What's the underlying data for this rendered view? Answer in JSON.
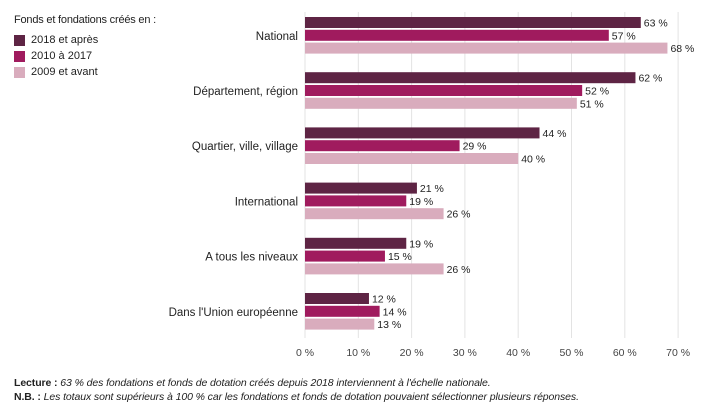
{
  "legend": {
    "title": "Fonds et fondations créés en :",
    "items": [
      {
        "label": "2018 et après",
        "color": "#5e2444"
      },
      {
        "label": "2010 à 2017",
        "color": "#a01b5e"
      },
      {
        "label": "2009 et avant",
        "color": "#d9acbd"
      }
    ]
  },
  "notes": {
    "lecture_label": "Lecture :",
    "lecture_text": "63 % des fondations et fonds de dotation créés depuis 2018 interviennent à l'échelle nationale.",
    "nb_label": "N.B. :",
    "nb_text": "Les totaux sont supérieurs à 100 % car les fondations et fonds de dotation pouvaient sélectionner plusieurs réponses."
  },
  "chart_data": {
    "type": "bar",
    "orientation": "horizontal",
    "categories": [
      "National",
      "Département, région",
      "Quartier, ville, village",
      "International",
      "A tous les niveaux",
      "Dans l'Union européenne"
    ],
    "series": [
      {
        "name": "2018 et après",
        "color": "#5e2444",
        "values": [
          63,
          62,
          44,
          21,
          19,
          12
        ],
        "labels": [
          "63 %",
          "62 %",
          "44 %",
          "21 %",
          "19 %",
          "12 %"
        ]
      },
      {
        "name": "2010 à 2017",
        "color": "#a01b5e",
        "values": [
          57,
          52,
          29,
          19,
          15,
          14
        ],
        "labels": [
          "57 %",
          "52 %",
          "29 %",
          "19 %",
          "15 %",
          "14 %"
        ]
      },
      {
        "name": "2009 et avant",
        "color": "#d9acbd",
        "values": [
          68,
          51,
          40,
          26,
          26,
          13
        ],
        "labels": [
          "68 %",
          "51 %",
          "40 %",
          "26 %",
          "26 %",
          "13 %"
        ]
      }
    ],
    "xlim": [
      0,
      70
    ],
    "xticks": [
      "0 %",
      "10 %",
      "20 %",
      "30 %",
      "40 %",
      "50 %",
      "60 %",
      "70 %"
    ],
    "grid": true,
    "legend_position": "top-left"
  }
}
